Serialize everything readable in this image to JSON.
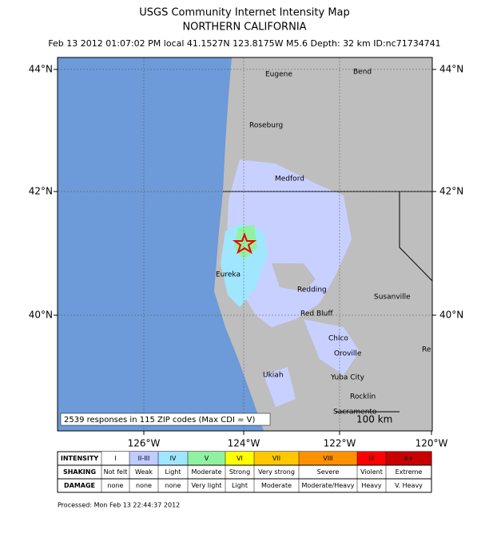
{
  "header": {
    "title": "USGS Community Internet Intensity Map",
    "region": "NORTHERN CALIFORNIA",
    "event": "Feb 13 2012 01:07:02 PM local 41.1527N 123.8175W M5.6 Depth: 32 km ID:nc71734741"
  },
  "map": {
    "lat_labels": [
      "44°N",
      "42°N",
      "40°N"
    ],
    "lon_labels": [
      "126°W",
      "124°W",
      "122°W",
      "120°W"
    ],
    "cities": [
      "Eugene",
      "Bend",
      "Roseburg",
      "Medford",
      "Eureka",
      "Redding",
      "Susanville",
      "Red Bluff",
      "Chico",
      "Oroville",
      "Ukiah",
      "Yuba City",
      "Rocklin",
      "Sacramento",
      "Re"
    ],
    "responses": "2539 responses in 115 ZIP codes (Max CDI = V)",
    "scale": "100 km"
  },
  "legend": {
    "row_labels": [
      "INTENSITY",
      "SHAKING",
      "DAMAGE"
    ],
    "intensity": [
      "I",
      "II-III",
      "IV",
      "V",
      "VI",
      "VII",
      "VIII",
      "IX",
      "X+"
    ],
    "shaking": [
      "Not felt",
      "Weak",
      "Light",
      "Moderate",
      "Strong",
      "Very strong",
      "Severe",
      "Violent",
      "Extreme"
    ],
    "damage": [
      "none",
      "none",
      "none",
      "Very light",
      "Light",
      "Moderate",
      "Moderate/Heavy",
      "Heavy",
      "V. Heavy"
    ],
    "colors": [
      "#ffffff",
      "#bfccff",
      "#a0e6ff",
      "#90f2a0",
      "#ffff00",
      "#ffc800",
      "#ff9100",
      "#ff0000",
      "#c80000"
    ]
  },
  "footer": "Processed: Mon Feb 13 22:44:37 2012"
}
